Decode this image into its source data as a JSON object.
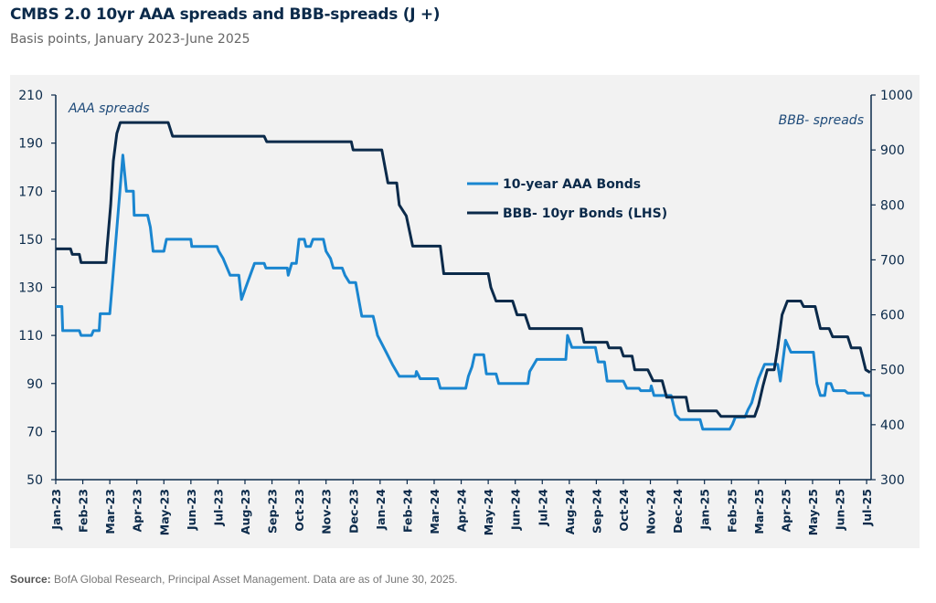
{
  "title": "CMBS 2.0 10yr AAA spreads and BBB-spreads (J +)",
  "subtitle": "Basis points, January 2023-June 2025",
  "source_label": "Source:",
  "source_text": "BofA Global Research, Principal Asset Management. Data are as of June 30, 2025.",
  "chart_data": {
    "type": "line",
    "title": "CMBS 2.0 10yr AAA spreads and BBB-spreads (J +)",
    "left_axis": {
      "label": "AAA spreads",
      "range": [
        50,
        210
      ],
      "ticks": [
        50,
        70,
        90,
        110,
        130,
        150,
        170,
        190,
        210
      ]
    },
    "right_axis": {
      "label": "BBB- spreads",
      "range": [
        300,
        1000
      ],
      "ticks": [
        300,
        400,
        500,
        600,
        700,
        800,
        900,
        1000
      ]
    },
    "x_tick_labels": [
      "Jan-23",
      "Feb-23",
      "Mar-23",
      "Apr-23",
      "May-23",
      "Jun-23",
      "Jul-23",
      "Aug-23",
      "Sep-23",
      "Oct-23",
      "Nov-23",
      "Dec-23",
      "Jan-24",
      "Feb-24",
      "Mar-24",
      "Apr-24",
      "May-24",
      "Jun-24",
      "Jul-24",
      "Aug-24",
      "Sep-24",
      "Oct-24",
      "Nov-24",
      "Dec-24",
      "Jan-25",
      "Feb-25",
      "Mar-25",
      "Apr-25",
      "May-25",
      "Jun-25",
      "Jul-25"
    ],
    "grid": false,
    "legend_position": "center-right",
    "series": [
      {
        "name": "10-year AAA Bonds",
        "axis": "left",
        "color": "#1a86d0",
        "points": [
          [
            "2023-01-01",
            122
          ],
          [
            "2023-01-08",
            122
          ],
          [
            "2023-01-09",
            112
          ],
          [
            "2023-01-28",
            112
          ],
          [
            "2023-01-30",
            110
          ],
          [
            "2023-02-10",
            110
          ],
          [
            "2023-02-12",
            112
          ],
          [
            "2023-02-18",
            112
          ],
          [
            "2023-02-19",
            119
          ],
          [
            "2023-03-01",
            119
          ],
          [
            "2023-03-04",
            132
          ],
          [
            "2023-03-16",
            185
          ],
          [
            "2023-03-20",
            170
          ],
          [
            "2023-03-28",
            170
          ],
          [
            "2023-03-29",
            160
          ],
          [
            "2023-04-13",
            160
          ],
          [
            "2023-04-16",
            155
          ],
          [
            "2023-04-19",
            145
          ],
          [
            "2023-05-01",
            145
          ],
          [
            "2023-05-04",
            150
          ],
          [
            "2023-06-01",
            150
          ],
          [
            "2023-06-02",
            147
          ],
          [
            "2023-06-30",
            147
          ],
          [
            "2023-07-02",
            145
          ],
          [
            "2023-07-07",
            142
          ],
          [
            "2023-07-15",
            135
          ],
          [
            "2023-07-25",
            135
          ],
          [
            "2023-07-28",
            125
          ],
          [
            "2023-08-02",
            130
          ],
          [
            "2023-08-07",
            135
          ],
          [
            "2023-08-12",
            140
          ],
          [
            "2023-08-23",
            140
          ],
          [
            "2023-08-25",
            138
          ],
          [
            "2023-09-18",
            138
          ],
          [
            "2023-09-19",
            135
          ],
          [
            "2023-09-23",
            140
          ],
          [
            "2023-09-28",
            140
          ],
          [
            "2023-10-01",
            150
          ],
          [
            "2023-10-07",
            150
          ],
          [
            "2023-10-09",
            147
          ],
          [
            "2023-10-14",
            147
          ],
          [
            "2023-10-17",
            150
          ],
          [
            "2023-10-29",
            150
          ],
          [
            "2023-11-01",
            145
          ],
          [
            "2023-11-06",
            142
          ],
          [
            "2023-11-09",
            138
          ],
          [
            "2023-11-19",
            138
          ],
          [
            "2023-11-22",
            135
          ],
          [
            "2023-11-27",
            132
          ],
          [
            "2023-12-04",
            132
          ],
          [
            "2023-12-11",
            118
          ],
          [
            "2023-12-24",
            118
          ],
          [
            "2023-12-26",
            115
          ],
          [
            "2023-12-29",
            110
          ],
          [
            "2024-01-08",
            103
          ],
          [
            "2024-01-15",
            98
          ],
          [
            "2024-01-23",
            93
          ],
          [
            "2024-02-10",
            93
          ],
          [
            "2024-02-11",
            95
          ],
          [
            "2024-02-15",
            92
          ],
          [
            "2024-03-05",
            92
          ],
          [
            "2024-03-08",
            88
          ],
          [
            "2024-04-06",
            88
          ],
          [
            "2024-04-09",
            93
          ],
          [
            "2024-04-13",
            97
          ],
          [
            "2024-04-16",
            102
          ],
          [
            "2024-04-26",
            102
          ],
          [
            "2024-04-29",
            94
          ],
          [
            "2024-05-10",
            94
          ],
          [
            "2024-05-13",
            90
          ],
          [
            "2024-06-15",
            90
          ],
          [
            "2024-06-17",
            95
          ],
          [
            "2024-06-25",
            100
          ],
          [
            "2024-07-28",
            100
          ],
          [
            "2024-07-30",
            110
          ],
          [
            "2024-08-04",
            105
          ],
          [
            "2024-08-31",
            105
          ],
          [
            "2024-09-03",
            99
          ],
          [
            "2024-09-10",
            99
          ],
          [
            "2024-09-13",
            91
          ],
          [
            "2024-10-01",
            91
          ],
          [
            "2024-10-05",
            88
          ],
          [
            "2024-10-19",
            88
          ],
          [
            "2024-10-21",
            87
          ],
          [
            "2024-11-01",
            87
          ],
          [
            "2024-11-02",
            89
          ],
          [
            "2024-11-05",
            85
          ],
          [
            "2024-11-24",
            85
          ],
          [
            "2024-11-26",
            82
          ],
          [
            "2024-11-29",
            77
          ],
          [
            "2024-12-04",
            75
          ],
          [
            "2024-12-27",
            75
          ],
          [
            "2024-12-30",
            71
          ],
          [
            "2025-01-30",
            71
          ],
          [
            "2025-02-02",
            73
          ],
          [
            "2025-02-05",
            76
          ],
          [
            "2025-02-15",
            76
          ],
          [
            "2025-02-18",
            79
          ],
          [
            "2025-02-22",
            82
          ],
          [
            "2025-02-26",
            88
          ],
          [
            "2025-03-01",
            92
          ],
          [
            "2025-03-08",
            98
          ],
          [
            "2025-03-23",
            98
          ],
          [
            "2025-03-26",
            91
          ],
          [
            "2025-04-01",
            108
          ],
          [
            "2025-04-07",
            103
          ],
          [
            "2025-05-02",
            103
          ],
          [
            "2025-05-06",
            90
          ],
          [
            "2025-05-10",
            85
          ],
          [
            "2025-05-15",
            85
          ],
          [
            "2025-05-17",
            90
          ],
          [
            "2025-05-22",
            90
          ],
          [
            "2025-05-25",
            87
          ],
          [
            "2025-06-07",
            87
          ],
          [
            "2025-06-10",
            86
          ],
          [
            "2025-06-27",
            86
          ],
          [
            "2025-06-29",
            85
          ],
          [
            "2025-07-05",
            85
          ]
        ]
      },
      {
        "name": "BBB- 10yr Bonds (LHS)",
        "axis": "right",
        "color": "#0b2a4a",
        "points": [
          [
            "2023-01-01",
            720
          ],
          [
            "2023-01-18",
            720
          ],
          [
            "2023-01-20",
            710
          ],
          [
            "2023-01-28",
            710
          ],
          [
            "2023-01-30",
            695
          ],
          [
            "2023-02-25",
            695
          ],
          [
            "2023-02-26",
            720
          ],
          [
            "2023-03-02",
            800
          ],
          [
            "2023-03-05",
            880
          ],
          [
            "2023-03-09",
            930
          ],
          [
            "2023-03-13",
            950
          ],
          [
            "2023-05-06",
            950
          ],
          [
            "2023-05-11",
            925
          ],
          [
            "2023-08-23",
            925
          ],
          [
            "2023-08-26",
            915
          ],
          [
            "2023-11-29",
            915
          ],
          [
            "2023-12-01",
            900
          ],
          [
            "2024-01-03",
            900
          ],
          [
            "2024-01-10",
            840
          ],
          [
            "2024-01-20",
            840
          ],
          [
            "2024-01-23",
            800
          ],
          [
            "2024-01-31",
            780
          ],
          [
            "2024-02-07",
            725
          ],
          [
            "2024-03-08",
            725
          ],
          [
            "2024-03-12",
            675
          ],
          [
            "2024-05-01",
            675
          ],
          [
            "2024-05-04",
            650
          ],
          [
            "2024-05-10",
            625
          ],
          [
            "2024-05-29",
            625
          ],
          [
            "2024-06-03",
            600
          ],
          [
            "2024-06-12",
            600
          ],
          [
            "2024-06-17",
            575
          ],
          [
            "2024-08-15",
            575
          ],
          [
            "2024-08-18",
            550
          ],
          [
            "2024-09-13",
            550
          ],
          [
            "2024-09-15",
            540
          ],
          [
            "2024-09-28",
            540
          ],
          [
            "2024-10-01",
            525
          ],
          [
            "2024-10-11",
            525
          ],
          [
            "2024-10-14",
            500
          ],
          [
            "2024-10-29",
            500
          ],
          [
            "2024-11-04",
            480
          ],
          [
            "2024-11-14",
            480
          ],
          [
            "2024-11-19",
            450
          ],
          [
            "2024-12-11",
            450
          ],
          [
            "2024-12-14",
            425
          ],
          [
            "2025-01-15",
            425
          ],
          [
            "2025-01-20",
            415
          ],
          [
            "2025-02-25",
            415
          ],
          [
            "2025-03-01",
            435
          ],
          [
            "2025-03-06",
            470
          ],
          [
            "2025-03-11",
            500
          ],
          [
            "2025-03-19",
            500
          ],
          [
            "2025-03-23",
            540
          ],
          [
            "2025-03-28",
            600
          ],
          [
            "2025-04-03",
            625
          ],
          [
            "2025-04-18",
            625
          ],
          [
            "2025-04-21",
            615
          ],
          [
            "2025-05-04",
            615
          ],
          [
            "2025-05-10",
            575
          ],
          [
            "2025-05-20",
            575
          ],
          [
            "2025-05-24",
            560
          ],
          [
            "2025-06-10",
            560
          ],
          [
            "2025-06-14",
            540
          ],
          [
            "2025-06-24",
            540
          ],
          [
            "2025-06-30",
            500
          ],
          [
            "2025-07-05",
            495
          ]
        ]
      }
    ]
  }
}
